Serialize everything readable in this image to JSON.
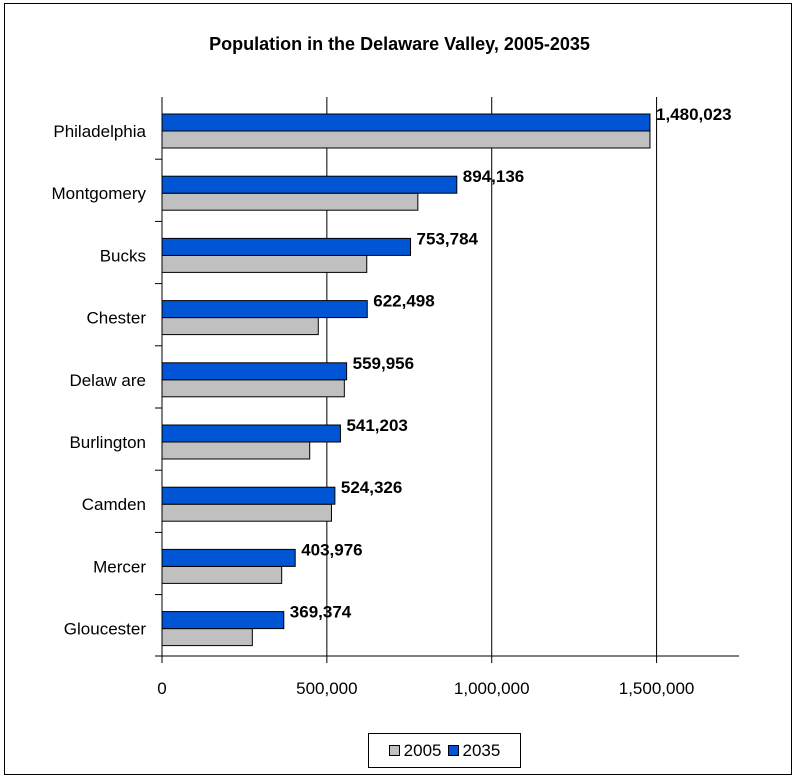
{
  "chart_data": {
    "type": "bar",
    "orientation": "horizontal",
    "title": "Population in the Delaware Valley, 2005-2035",
    "categories": [
      "Philadelphia",
      "Montgomery",
      "Bucks",
      "Chester",
      "Delaw are",
      "Burlington",
      "Camden",
      "Mercer",
      "Gloucester"
    ],
    "series": [
      {
        "name": "2005",
        "color": "#c0c0c0",
        "values": [
          1480000,
          776000,
          621000,
          474000,
          553000,
          448000,
          514000,
          363000,
          274000
        ]
      },
      {
        "name": "2035",
        "color": "#0055d4",
        "values": [
          1480023,
          894136,
          753784,
          622498,
          559956,
          541203,
          524326,
          403976,
          369374
        ]
      }
    ],
    "data_labels": [
      "1,480,023",
      "894,136",
      "753,784",
      "622,498",
      "559,956",
      "541,203",
      "524,326",
      "403,976",
      "369,374"
    ],
    "xlim": [
      0,
      1750000
    ],
    "x_ticks": [
      0,
      500000,
      1000000,
      1500000
    ],
    "x_tick_labels": [
      "0",
      "500,000",
      "1,000,000",
      "1,500,000"
    ],
    "grid": "vertical",
    "legend_position": "bottom"
  }
}
